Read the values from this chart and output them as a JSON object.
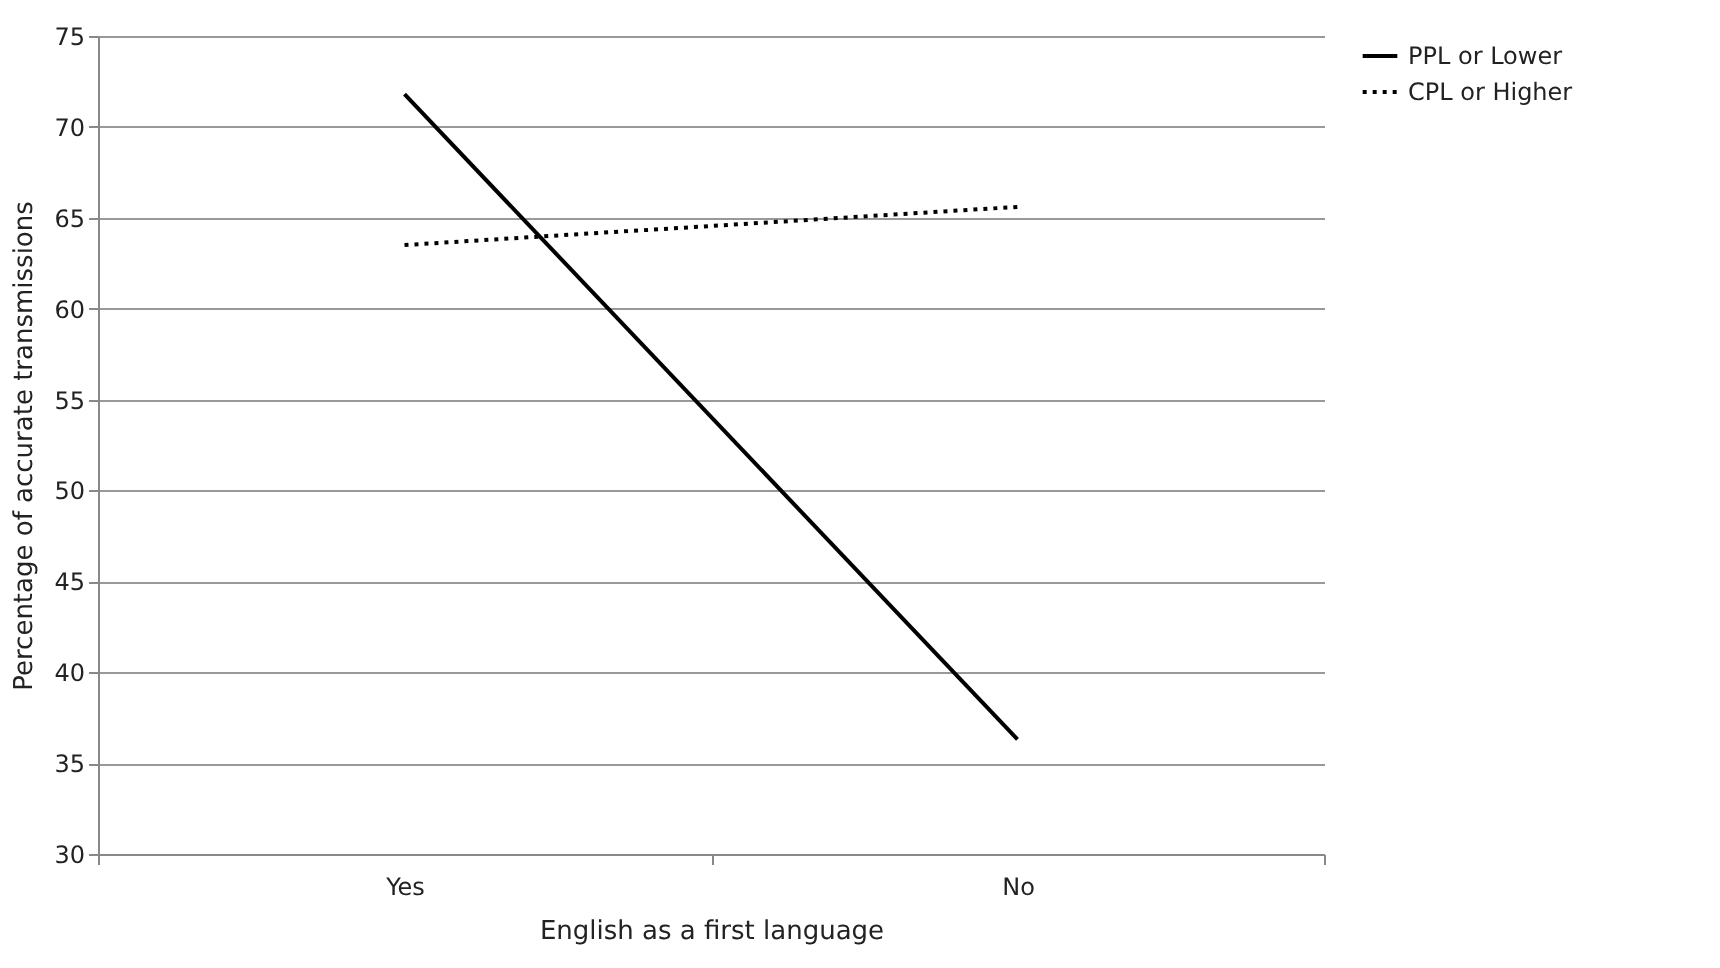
{
  "chart_data": {
    "type": "line",
    "xlabel": "English as a first language",
    "ylabel": "Percentage of accurate transmissions",
    "categories": [
      "Yes",
      "No"
    ],
    "series": [
      {
        "name": "PPL or Lower",
        "color": "#000000",
        "line_style": "solid",
        "values": [
          71.8,
          36.3
        ]
      },
      {
        "name": "CPL or Higher",
        "color": "#000000",
        "line_style": "dotted",
        "values": [
          63.5,
          65.6
        ]
      }
    ],
    "ylim": [
      30,
      75
    ],
    "yticks": [
      30,
      35,
      40,
      45,
      50,
      55,
      60,
      65,
      70,
      75
    ],
    "grid": "y",
    "legend": "right",
    "marker": "none"
  }
}
